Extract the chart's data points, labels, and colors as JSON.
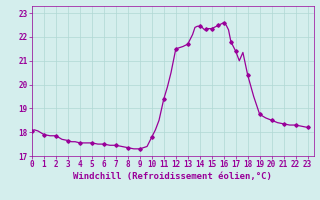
{
  "x": [
    0,
    1,
    2,
    3,
    4,
    5,
    6,
    7,
    8,
    9,
    10,
    11,
    12,
    13,
    14,
    15,
    16,
    17,
    18,
    19,
    20,
    21,
    22,
    23
  ],
  "y": [
    18.05,
    17.9,
    17.85,
    17.65,
    17.55,
    17.55,
    17.5,
    17.45,
    17.35,
    17.3,
    17.8,
    19.4,
    21.5,
    21.7,
    22.45,
    22.35,
    22.6,
    21.4,
    20.4,
    18.75,
    18.5,
    18.35,
    18.3,
    18.2
  ],
  "x_fine": [
    0.0,
    0.2,
    0.5,
    1.0,
    1.5,
    2.0,
    2.5,
    3.0,
    3.3,
    3.6,
    4.0,
    4.5,
    5.0,
    5.5,
    6.0,
    6.5,
    7.0,
    7.5,
    8.0,
    8.5,
    9.0,
    9.3,
    9.6,
    10.0,
    10.3,
    10.6,
    11.0,
    11.3,
    11.6,
    12.0,
    12.3,
    12.6,
    13.0,
    13.2,
    13.4,
    13.6,
    13.8,
    14.0,
    14.2,
    14.4,
    14.6,
    14.8,
    15.0,
    15.2,
    15.4,
    15.6,
    15.8,
    16.0,
    16.2,
    16.4,
    16.6,
    17.0,
    17.3,
    17.6,
    18.0,
    18.5,
    19.0,
    19.5,
    20.0,
    20.5,
    21.0,
    21.5,
    22.0,
    22.5,
    23.0
  ],
  "y_fine": [
    18.05,
    18.1,
    18.05,
    17.9,
    17.85,
    17.85,
    17.7,
    17.65,
    17.6,
    17.6,
    17.55,
    17.55,
    17.55,
    17.5,
    17.5,
    17.45,
    17.45,
    17.4,
    17.35,
    17.3,
    17.3,
    17.35,
    17.4,
    17.8,
    18.1,
    18.5,
    19.4,
    19.9,
    20.5,
    21.5,
    21.55,
    21.6,
    21.7,
    21.9,
    22.1,
    22.4,
    22.45,
    22.45,
    22.4,
    22.3,
    22.35,
    22.35,
    22.35,
    22.4,
    22.45,
    22.5,
    22.55,
    22.6,
    22.5,
    22.3,
    21.8,
    21.4,
    21.0,
    21.35,
    20.4,
    19.5,
    18.75,
    18.6,
    18.5,
    18.4,
    18.35,
    18.3,
    18.3,
    18.25,
    18.2
  ],
  "markers_x": [
    0,
    1,
    2,
    3,
    4,
    5,
    6,
    7,
    8,
    9,
    10,
    11,
    12,
    13,
    14,
    14.5,
    15,
    15.5,
    16,
    16.6,
    17,
    18,
    19,
    20,
    21,
    22,
    23
  ],
  "markers_y": [
    18.05,
    17.9,
    17.85,
    17.65,
    17.55,
    17.55,
    17.5,
    17.45,
    17.35,
    17.3,
    17.8,
    19.4,
    21.5,
    21.7,
    22.45,
    22.35,
    22.35,
    22.5,
    22.6,
    21.8,
    21.4,
    20.4,
    18.75,
    18.5,
    18.35,
    18.3,
    18.2
  ],
  "line_color": "#990099",
  "marker": "D",
  "marker_size": 1.8,
  "line_width": 0.9,
  "background_color": "#d4eeed",
  "grid_color": "#b0d8d4",
  "xlabel": "Windchill (Refroidissement éolien,°C)",
  "xlabel_color": "#990099",
  "xlabel_fontsize": 6.5,
  "tick_label_color": "#990099",
  "tick_fontsize": 5.5,
  "xlim": [
    0,
    23.5
  ],
  "ylim": [
    17.0,
    23.3
  ],
  "yticks": [
    17,
    18,
    19,
    20,
    21,
    22,
    23
  ],
  "xticks": [
    0,
    1,
    2,
    3,
    4,
    5,
    6,
    7,
    8,
    9,
    10,
    11,
    12,
    13,
    14,
    15,
    16,
    17,
    18,
    19,
    20,
    21,
    22,
    23
  ]
}
